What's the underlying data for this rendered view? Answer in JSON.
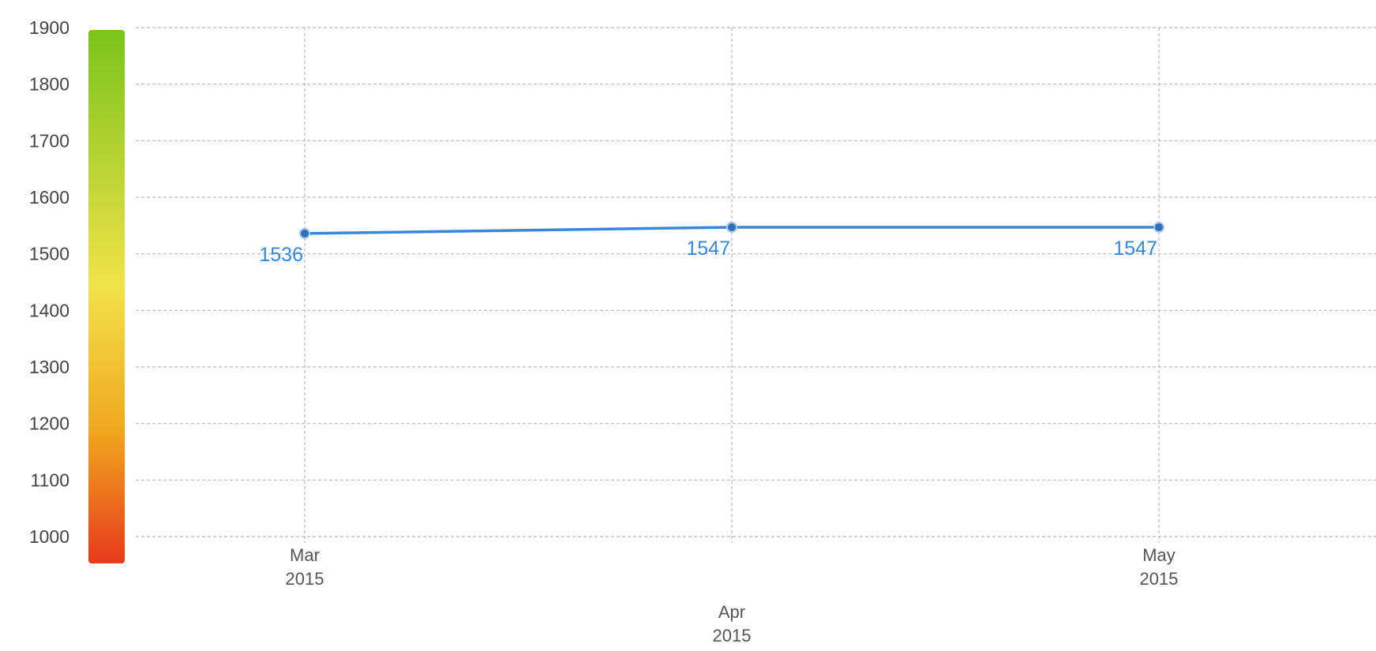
{
  "chart_data": {
    "type": "line",
    "title": "",
    "xlabel": "",
    "ylabel": "",
    "x": [
      "Mar 2015",
      "Apr 2015",
      "May 2015"
    ],
    "x_tick_labels": [
      {
        "month": "Mar",
        "year": "2015"
      },
      {
        "month": "Apr",
        "year": "2015"
      },
      {
        "month": "May",
        "year": "2015"
      }
    ],
    "series": [
      {
        "values": [
          1536,
          1547,
          1547
        ],
        "data_labels": [
          "1536",
          "1547",
          "1547"
        ]
      }
    ],
    "ylim": [
      1000,
      1900
    ],
    "y_ticks": [
      "1900",
      "1800",
      "1700",
      "1600",
      "1500",
      "1400",
      "1300",
      "1200",
      "1100",
      "1000"
    ],
    "grid": true,
    "legend": "none",
    "color_scale": {
      "top": "#7ac41a",
      "middle": "#f2e24a",
      "lower": "#f0a81e",
      "bottom": "#e83a1c"
    },
    "colors": {
      "line": "#3a86d8",
      "point": "#2f6fb8",
      "label": "#3a86d8"
    }
  }
}
